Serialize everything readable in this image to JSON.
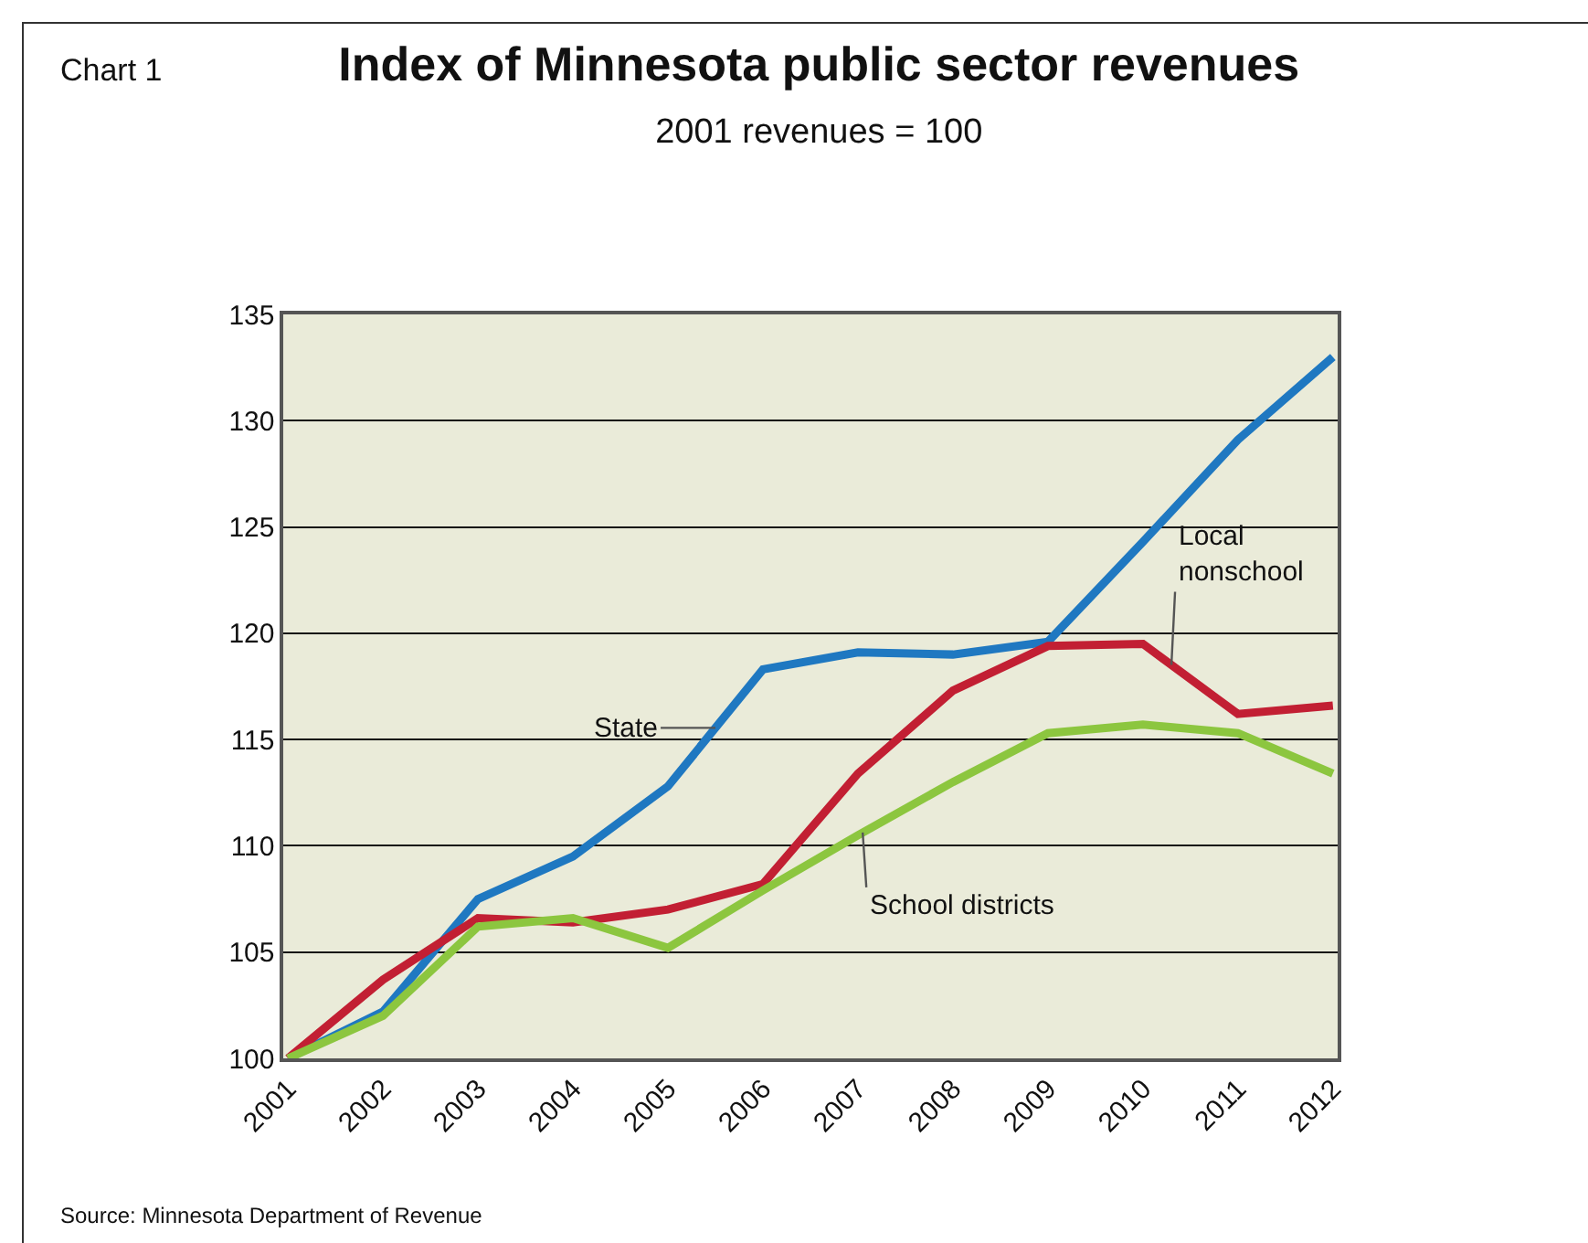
{
  "chart_data": {
    "type": "line",
    "title": "Index of Minnesota public sector revenues",
    "subtitle": "2001 revenues = 100",
    "annotations": [
      "Chart 1",
      "Source: Minnesota Department of Revenue"
    ],
    "categories": [
      "2001",
      "2002",
      "2003",
      "2004",
      "2005",
      "2006",
      "2007",
      "2008",
      "2009",
      "2010",
      "2011",
      "2012"
    ],
    "series": [
      {
        "name": "State",
        "color": "#1f78c1",
        "values": [
          100,
          102.2,
          107.5,
          109.5,
          112.8,
          118.3,
          119.1,
          119.0,
          119.6,
          124.3,
          129.1,
          133.0
        ]
      },
      {
        "name": "Local nonschool",
        "color": "#c21f33",
        "values": [
          100,
          103.7,
          106.6,
          106.4,
          107.0,
          108.2,
          113.4,
          117.3,
          119.4,
          119.5,
          116.2,
          116.6
        ]
      },
      {
        "name": "School districts",
        "color": "#8cc63f",
        "values": [
          100,
          102.0,
          106.2,
          106.6,
          105.2,
          107.9,
          110.5,
          113.0,
          115.3,
          115.7,
          115.3,
          113.4
        ]
      }
    ],
    "ylim": [
      100,
      135
    ],
    "yticks": [
      100,
      105,
      110,
      115,
      120,
      125,
      130,
      135
    ],
    "grid": "y",
    "legend": false,
    "marker": "none",
    "line_style": "solid"
  }
}
